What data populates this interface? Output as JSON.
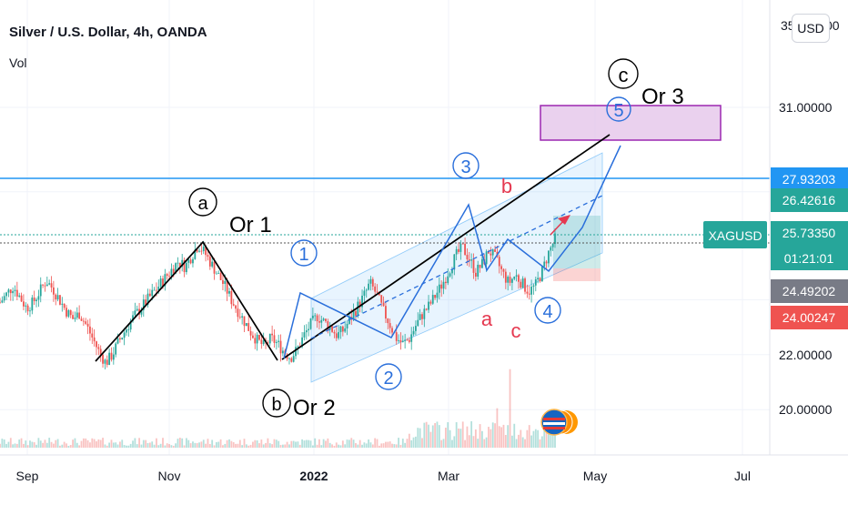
{
  "header": {
    "symbol_title": "Silver / U.S. Dollar, 4h, OANDA",
    "indicator": "Vol",
    "currency_button": "USD"
  },
  "colors": {
    "up": "#26a69a",
    "down": "#ef5350",
    "resistance": "#2196f3",
    "wave": "#2a6fdb",
    "correction": "#e53950",
    "target_box": "#9c27b0"
  },
  "chart_data": {
    "type": "candlestick",
    "ylim": [
      18.7,
      35.0
    ],
    "x_ticks": [
      "Sep",
      "Nov",
      "2022",
      "Mar",
      "May",
      "Jul"
    ],
    "y_ticks": [
      "31.00000",
      "22.00000",
      "20.00000"
    ],
    "y_top_partial": "35",
    "y_top_partial_tail": "00",
    "closes": [
      23.9,
      24.2,
      24.5,
      24.1,
      23.7,
      23.9,
      24.3,
      24.7,
      24.4,
      24.0,
      23.6,
      23.3,
      23.5,
      23.1,
      22.6,
      22.1,
      21.7,
      22.0,
      22.5,
      22.9,
      23.3,
      23.6,
      23.9,
      24.2,
      24.5,
      24.8,
      25.1,
      25.4,
      25.2,
      25.6,
      26.0,
      25.7,
      25.3,
      24.9,
      24.5,
      24.0,
      23.6,
      23.2,
      22.8,
      22.5,
      22.3,
      22.6,
      22.4,
      22.1,
      21.9,
      22.2,
      22.7,
      23.1,
      23.4,
      23.2,
      23.0,
      22.7,
      22.9,
      23.3,
      23.7,
      24.1,
      24.6,
      24.2,
      23.6,
      23.1,
      22.6,
      22.4,
      22.6,
      23.1,
      23.5,
      23.8,
      24.2,
      24.6,
      25.1,
      25.6,
      25.9,
      25.5,
      25.0,
      25.3,
      25.8,
      25.5,
      25.0,
      24.6,
      24.9,
      24.6,
      24.3,
      24.5,
      25.0,
      25.7,
      26.2
    ],
    "price_labels": [
      {
        "label": "27.93203",
        "value": 27.93,
        "kind": "resistance"
      },
      {
        "label": "26.42616",
        "value": 26.43,
        "kind": "up"
      },
      {
        "label": "25.73350",
        "value": 25.73,
        "kind": "last"
      },
      {
        "label": "01:21:01",
        "value": 25.18,
        "kind": "countdown"
      },
      {
        "label": "24.49202",
        "value": 24.49,
        "kind": "gray"
      },
      {
        "label": "24.00247",
        "value": 24.0,
        "kind": "down"
      }
    ],
    "symbol_tag": "XAGUSD",
    "resistance_level": 27.93,
    "target_zone": [
      30.4,
      31.1
    ],
    "annotations": {
      "wave_a": "a",
      "or1": "Or 1",
      "wave_b": "b",
      "or2": "Or 2",
      "wave_c": "c",
      "or3": "Or 3",
      "w1": "1",
      "w2": "2",
      "w3": "3",
      "w4": "4",
      "w5": "5",
      "corr_a": "a",
      "corr_b": "b",
      "corr_c": "c"
    }
  }
}
